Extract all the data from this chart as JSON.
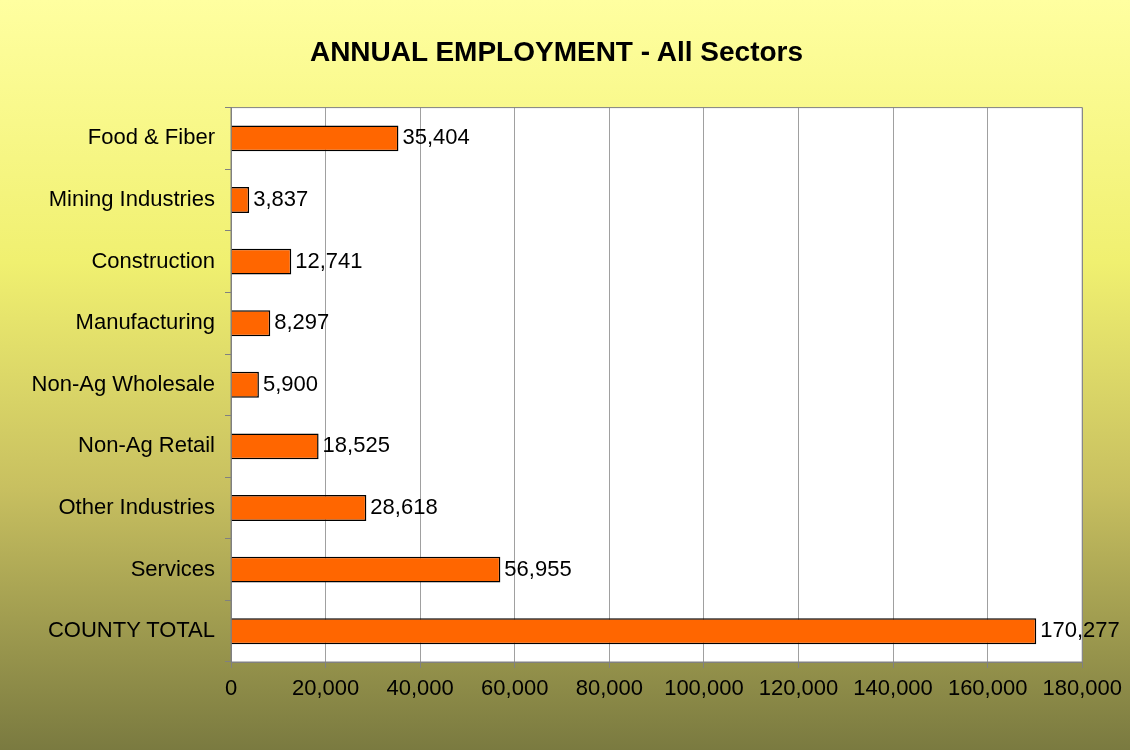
{
  "chart_data": {
    "type": "bar",
    "orientation": "horizontal",
    "title": "ANNUAL EMPLOYMENT - All Sectors",
    "categories": [
      "Food & Fiber",
      "Mining Industries",
      "Construction",
      "Manufacturing",
      "Non-Ag Wholesale",
      "Non-Ag Retail",
      "Other Industries",
      "Services",
      "COUNTY TOTAL"
    ],
    "values": [
      35404,
      3837,
      12741,
      8297,
      5900,
      18525,
      28618,
      56955,
      170277
    ],
    "value_labels": [
      "35,404",
      "3,837",
      "12,741",
      "8,297",
      "5,900",
      "18,525",
      "28,618",
      "56,955",
      "170,277"
    ],
    "color": "#ff6600",
    "xlim": [
      0,
      180000
    ],
    "xticks": [
      0,
      {
        "value": 20000,
        "label": "20,000"
      },
      {
        "value": 40000,
        "label": "40,000"
      },
      {
        "value": 60000,
        "label": "60,000"
      },
      {
        "value": 80000,
        "label": "80,000"
      },
      {
        "value": 100000,
        "label": "100,000"
      },
      {
        "value": 120000,
        "label": "120,000"
      },
      {
        "value": 140000,
        "label": "140,000"
      },
      {
        "value": 160000,
        "label": "160,000"
      },
      {
        "value": 180000,
        "label": "180,000"
      }
    ],
    "grid": "x",
    "legend": false
  }
}
